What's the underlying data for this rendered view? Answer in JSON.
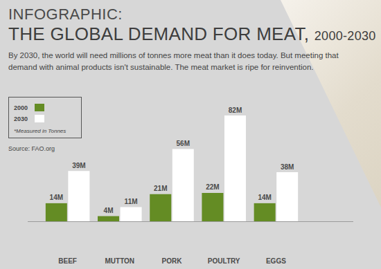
{
  "chart_data": {
    "type": "bar",
    "supertitle": "INFOGRAPHIC:",
    "title": "THE GLOBAL DEMAND FOR MEAT, 2000-2030",
    "subtitle": "By 2030, the world will need millions of tonnes more meat than it does today. But meeting that demand with animal products isn't sustainable. The meat market is ripe for reinvention.",
    "note": "*Measured in Tonnes",
    "source": "Source: FAO.org",
    "categories": [
      "BEEF",
      "MUTTON",
      "PORK",
      "POULTRY",
      "EGGS"
    ],
    "series": [
      {
        "name": "2000",
        "color": "#648c24",
        "values": [
          14000000,
          4000000,
          21000000,
          22000000,
          14000000
        ],
        "value_labels": [
          "14M",
          "4M",
          "21M",
          "22M",
          "14M"
        ]
      },
      {
        "name": "2030",
        "color": "#ffffff",
        "values": [
          39000000,
          11000000,
          56000000,
          82000000,
          38000000
        ],
        "value_labels": [
          "39M",
          "11M",
          "56M",
          "82M",
          "38M"
        ]
      }
    ],
    "ylim": [
      0,
      82000000
    ],
    "data_labels": true,
    "tick_labels": "x",
    "grid": false,
    "legend": "upper left"
  }
}
